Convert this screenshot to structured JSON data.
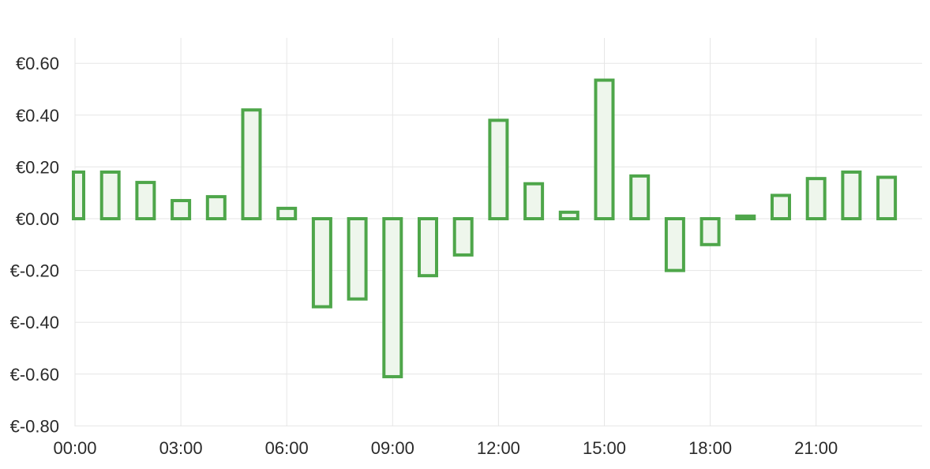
{
  "chart_data": {
    "type": "bar",
    "title": "",
    "xlabel": "",
    "ylabel": "",
    "ylim": [
      -0.8,
      0.7
    ],
    "yticks": [
      0.6,
      0.4,
      0.2,
      0.0,
      -0.2,
      -0.4,
      -0.6,
      -0.8
    ],
    "ytick_labels": [
      "€0.60",
      "€0.40",
      "€0.20",
      "€0.00",
      "€-0.20",
      "€-0.40",
      "€-0.60",
      "€-0.80"
    ],
    "xticks": [
      0,
      3,
      6,
      9,
      12,
      15,
      18,
      21
    ],
    "xtick_labels": [
      "00:00",
      "03:00",
      "06:00",
      "09:00",
      "12:00",
      "15:00",
      "18:00",
      "21:00"
    ],
    "grid": true,
    "colors": {
      "bar_stroke": "#4ea64a",
      "bar_fill": "#eef6ec"
    },
    "hours": [
      0,
      1,
      2,
      3,
      4,
      5,
      6,
      7,
      8,
      9,
      10,
      11,
      12,
      13,
      14,
      15,
      16,
      17,
      18,
      19,
      20,
      21,
      22,
      23
    ],
    "values": [
      0.18,
      0.18,
      0.14,
      0.07,
      0.085,
      0.42,
      0.04,
      -0.34,
      -0.31,
      -0.61,
      -0.22,
      -0.14,
      0.38,
      0.135,
      0.025,
      0.535,
      0.165,
      -0.2,
      -0.1,
      0.01,
      0.09,
      0.155,
      0.18,
      0.16
    ]
  }
}
